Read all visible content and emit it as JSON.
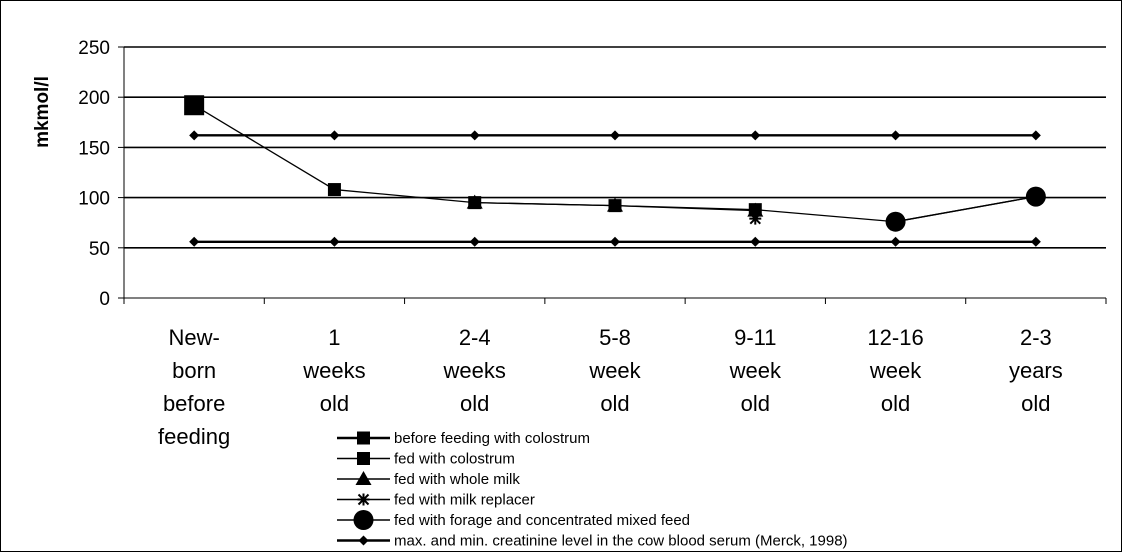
{
  "chart_data": {
    "type": "line",
    "ylabel": "mkmol/l",
    "ylim": [
      0,
      250
    ],
    "yticks": [
      0,
      50,
      100,
      150,
      200,
      250
    ],
    "grid": true,
    "legend_position": "bottom",
    "categories": [
      [
        "New-",
        "born",
        "before",
        "feeding"
      ],
      [
        "1",
        "weeks",
        "old"
      ],
      [
        "2-4",
        "weeks",
        "old"
      ],
      [
        "5-8",
        "week",
        "old"
      ],
      [
        "9-11",
        "week",
        "old"
      ],
      [
        "12-16",
        "week",
        "old"
      ],
      [
        "2-3",
        "years",
        "old"
      ]
    ],
    "series": [
      {
        "name": "before feeding with colostrum",
        "marker": "square-large",
        "values": [
          192,
          null,
          null,
          null,
          null,
          null,
          null
        ]
      },
      {
        "name": "fed with colostrum",
        "marker": "square",
        "values": [
          192,
          108,
          95,
          92,
          88,
          76,
          101
        ]
      },
      {
        "name": "fed with whole milk",
        "marker": "triangle",
        "values": [
          null,
          null,
          95,
          92,
          87,
          null,
          null
        ]
      },
      {
        "name": "fed with milk replacer",
        "marker": "star",
        "values": [
          null,
          null,
          null,
          null,
          79,
          null,
          null
        ]
      },
      {
        "name": "fed with forage and concentrated mixed feed",
        "marker": "circle",
        "values": [
          null,
          null,
          null,
          null,
          null,
          76,
          101
        ]
      },
      {
        "name": "max. and min. creatinine level in the cow blood serum (Merck, 1998)",
        "marker": "diamond",
        "values": [
          162,
          162,
          162,
          162,
          162,
          162,
          162
        ],
        "values_min": [
          56,
          56,
          56,
          56,
          56,
          56,
          56
        ]
      }
    ]
  }
}
